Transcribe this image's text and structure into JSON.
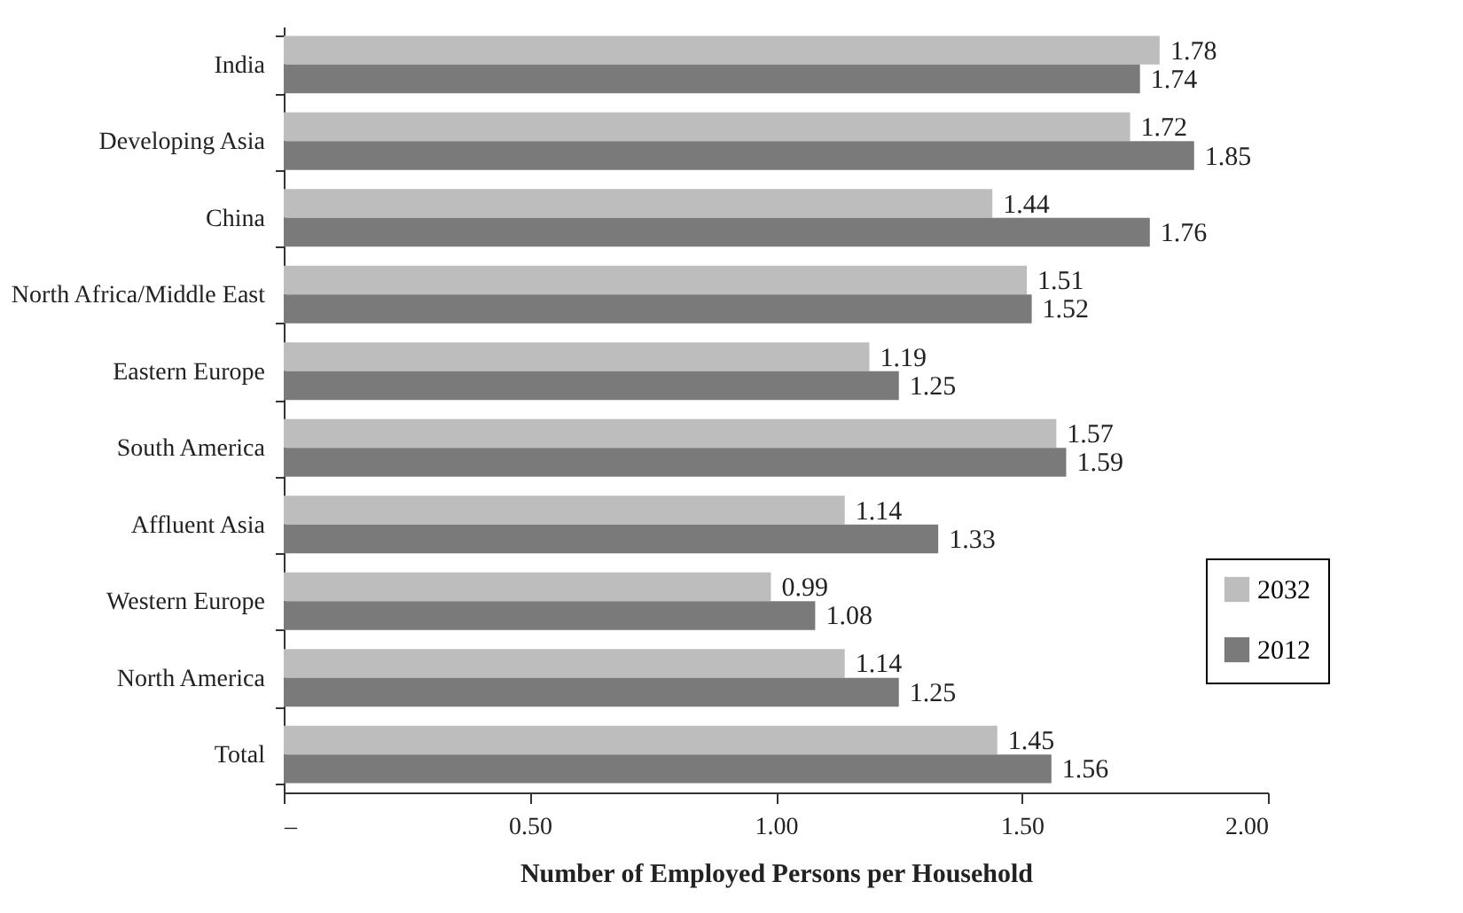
{
  "chart_data": {
    "type": "bar",
    "orientation": "horizontal",
    "xlabel": "Number of Employed Persons per Household",
    "categories": [
      "India",
      "Developing Asia",
      "China",
      "North Africa/Middle East",
      "Eastern Europe",
      "South America",
      "Affluent Asia",
      "Western Europe",
      "North America",
      "Total"
    ],
    "series": [
      {
        "name": "2032",
        "color": "#bdbdbd",
        "values": [
          1.78,
          1.72,
          1.44,
          1.51,
          1.19,
          1.57,
          1.14,
          0.99,
          1.14,
          1.45
        ]
      },
      {
        "name": "2012",
        "color": "#7a7a7a",
        "values": [
          1.74,
          1.85,
          1.76,
          1.52,
          1.25,
          1.59,
          1.33,
          1.08,
          1.25,
          1.56
        ]
      }
    ],
    "xlim": [
      0,
      2
    ],
    "xticks": [
      {
        "value": 0,
        "label": "–"
      },
      {
        "value": 0.5,
        "label": "0.50"
      },
      {
        "value": 1,
        "label": "1.00"
      },
      {
        "value": 1.5,
        "label": "1.50"
      },
      {
        "value": 2,
        "label": "2.00"
      }
    ],
    "data_labels": true,
    "grid": false,
    "legend": "right"
  }
}
